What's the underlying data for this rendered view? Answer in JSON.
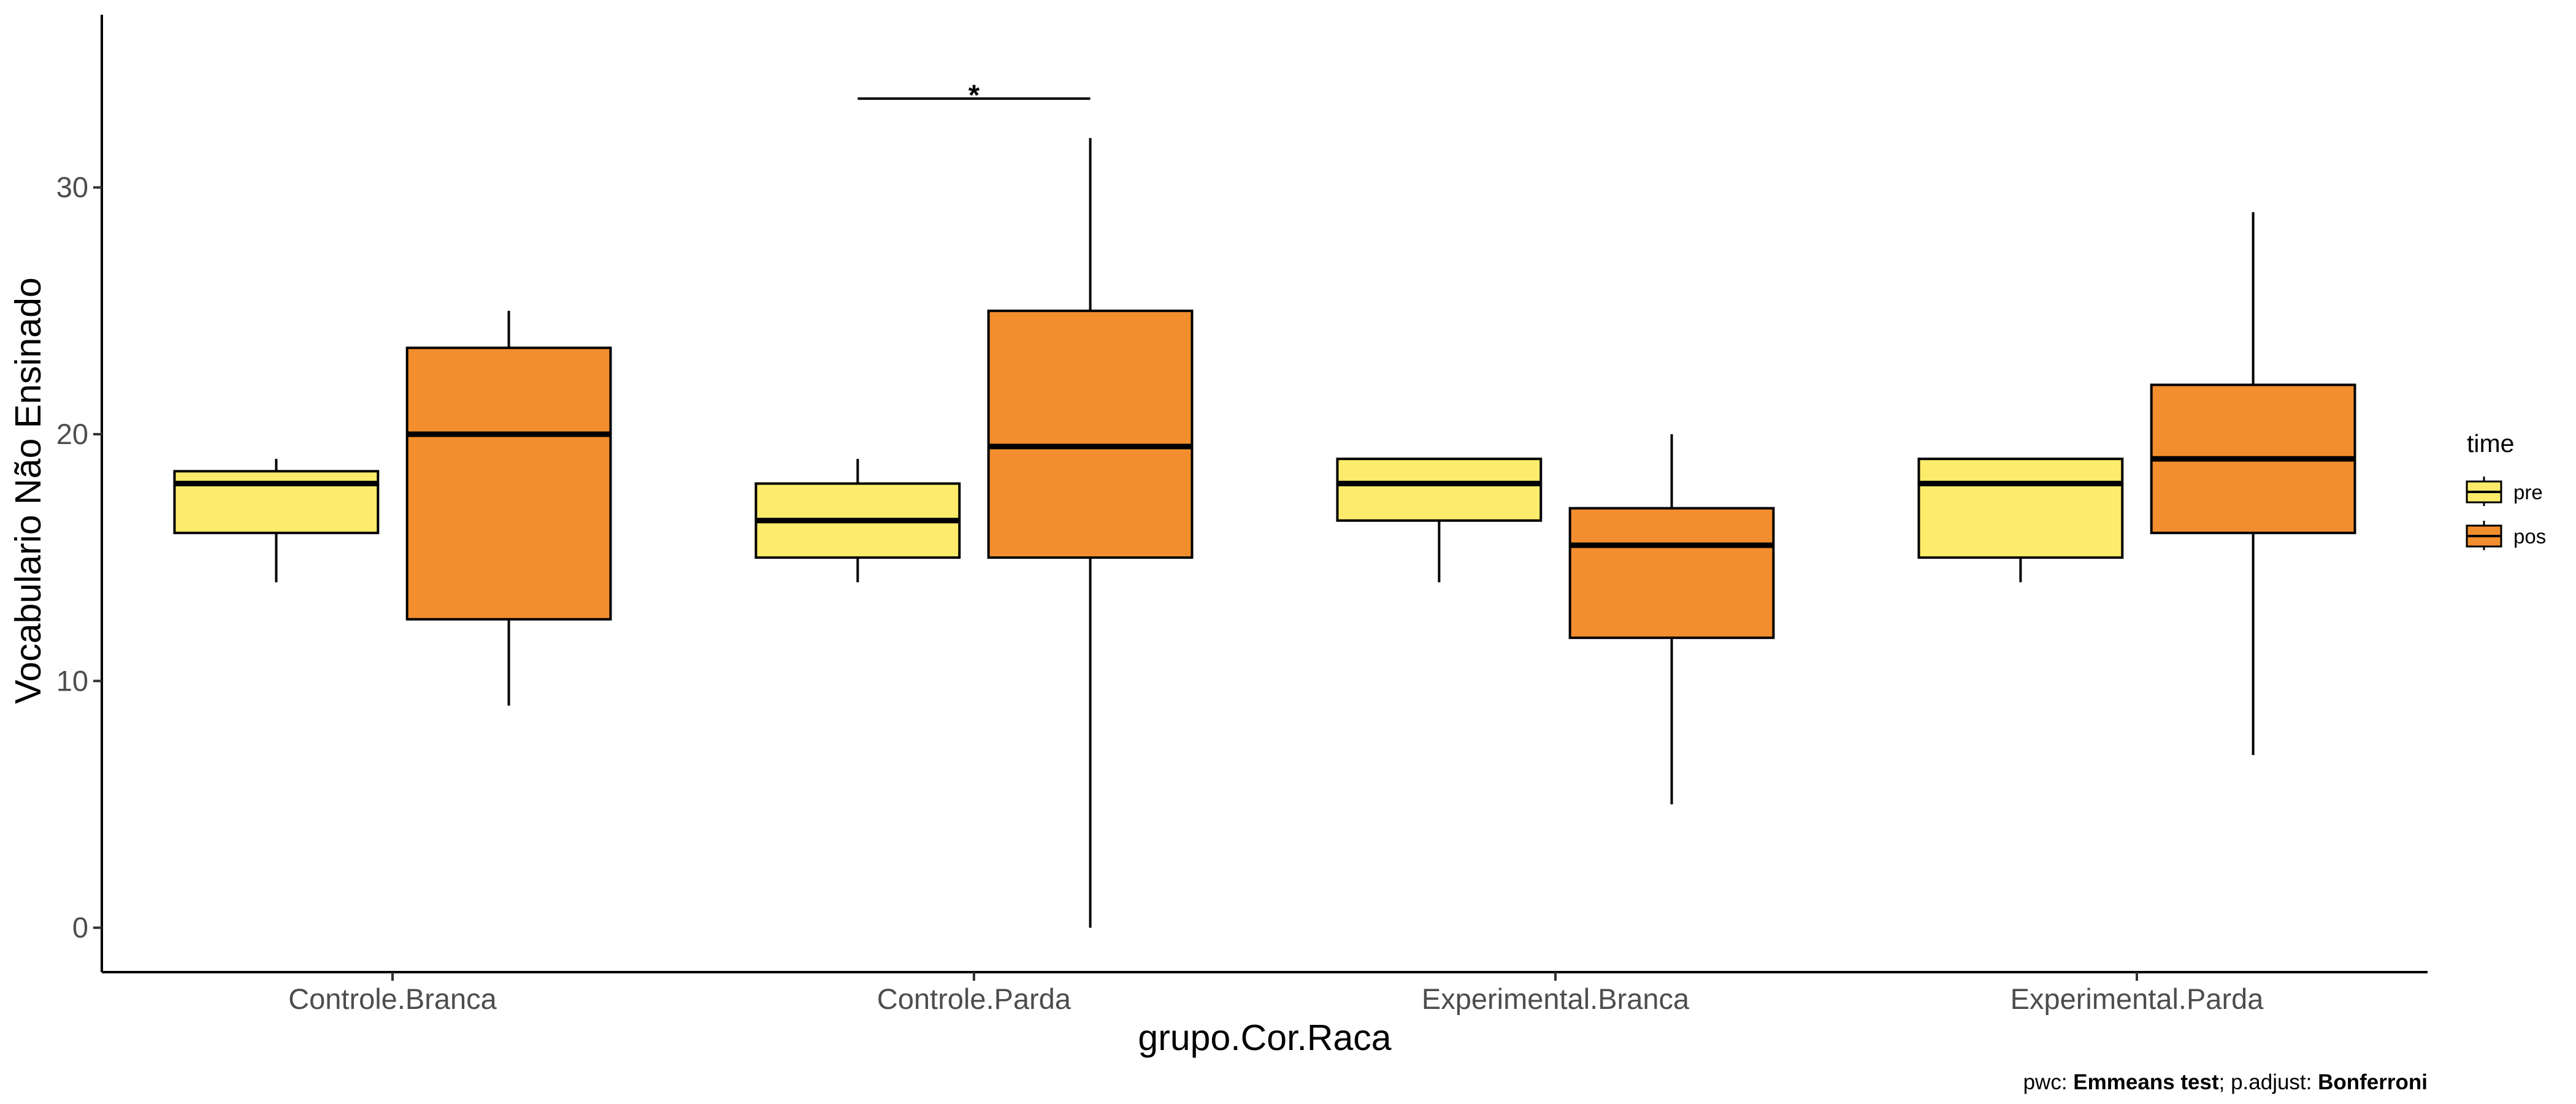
{
  "chart_data": {
    "type": "boxplot",
    "xlabel": "grupo.Cor.Raca",
    "ylabel": "Vocabulario Não Ensinado",
    "ylim": [
      -1.8,
      37
    ],
    "y_ticks": [
      0,
      10,
      20,
      30
    ],
    "grid": false,
    "categories": [
      "Controle.Branca",
      "Controle.Parda",
      "Experimental.Branca",
      "Experimental.Parda"
    ],
    "legend": {
      "title": "time",
      "position": "right",
      "items": [
        {
          "label": "pre",
          "color": "#FDEC6B"
        },
        {
          "label": "pos",
          "color": "#F28E2E"
        }
      ]
    },
    "series": [
      {
        "name": "pre",
        "color": "#FDEC6B",
        "boxes": [
          {
            "category": "Controle.Branca",
            "whisker_low": 14,
            "q1": 16,
            "median": 18,
            "q3": 18.5,
            "whisker_high": 19
          },
          {
            "category": "Controle.Parda",
            "whisker_low": 14,
            "q1": 15,
            "median": 16.5,
            "q3": 18,
            "whisker_high": 19
          },
          {
            "category": "Experimental.Branca",
            "whisker_low": 14,
            "q1": 16.5,
            "median": 18,
            "q3": 19,
            "whisker_high": 19
          },
          {
            "category": "Experimental.Parda",
            "whisker_low": 14,
            "q1": 15,
            "median": 18,
            "q3": 19,
            "whisker_high": 19
          }
        ]
      },
      {
        "name": "pos",
        "color": "#F28E2E",
        "boxes": [
          {
            "category": "Controle.Branca",
            "whisker_low": 9,
            "q1": 12.5,
            "median": 20,
            "q3": 23.5,
            "whisker_high": 25
          },
          {
            "category": "Controle.Parda",
            "whisker_low": 0,
            "q1": 15,
            "median": 19.5,
            "q3": 25,
            "whisker_high": 32
          },
          {
            "category": "Experimental.Branca",
            "whisker_low": 5,
            "q1": 11.75,
            "median": 15.5,
            "q3": 17,
            "whisker_high": 20
          },
          {
            "category": "Experimental.Parda",
            "whisker_low": 7,
            "q1": 16,
            "median": 19,
            "q3": 22,
            "whisker_high": 29
          }
        ]
      }
    ],
    "annotations": [
      {
        "category": "Controle.Parda",
        "y": 33.6,
        "label": "*"
      }
    ],
    "caption": {
      "parts": [
        {
          "text": "pwc: ",
          "bold": false
        },
        {
          "text": "Emmeans test",
          "bold": true
        },
        {
          "text": "; p.adjust: ",
          "bold": false
        },
        {
          "text": "Bonferroni",
          "bold": true
        }
      ]
    }
  }
}
